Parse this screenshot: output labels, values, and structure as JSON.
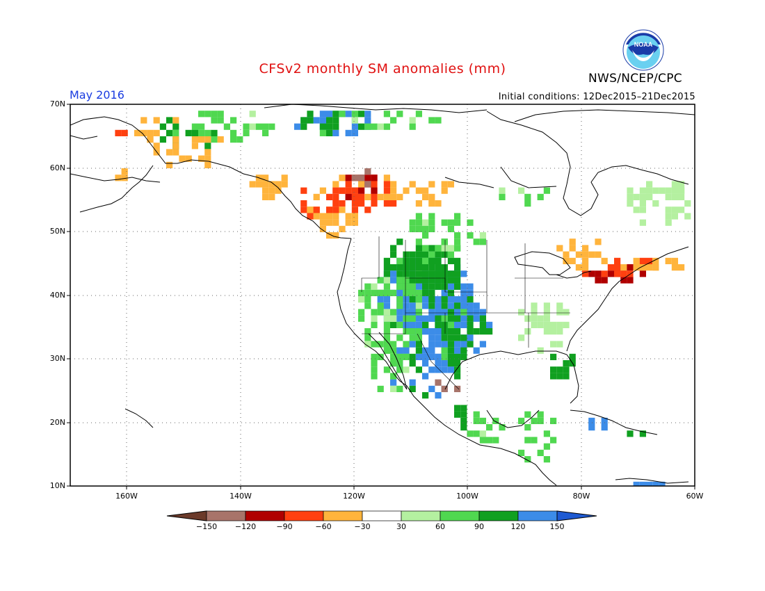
{
  "title": "CFSv2 monthly SM anomalies (mm)",
  "month_label": "May 2016",
  "initial_conditions": "Initial conditions: 12Dec2015–21Dec2015",
  "agency": "NWS/NCEP/CPC",
  "logo_text": "NOAA",
  "lat_labels": [
    "70N",
    "60N",
    "50N",
    "40N",
    "30N",
    "20N",
    "10N"
  ],
  "lon_labels": [
    "160W",
    "140W",
    "120W",
    "100W",
    "80W",
    "60W"
  ],
  "colorbar": {
    "labels": [
      "−150",
      "−120",
      "−90",
      "−60",
      "−30",
      "30",
      "60",
      "90",
      "120",
      "150"
    ],
    "colors": [
      "#6b3a2a",
      "#a8746a",
      "#b00000",
      "#ff4010",
      "#ffb43c",
      "#ffffff",
      "#b4f0a0",
      "#50d850",
      "#10a020",
      "#3c8ce8",
      "#1e5ad2"
    ]
  }
}
